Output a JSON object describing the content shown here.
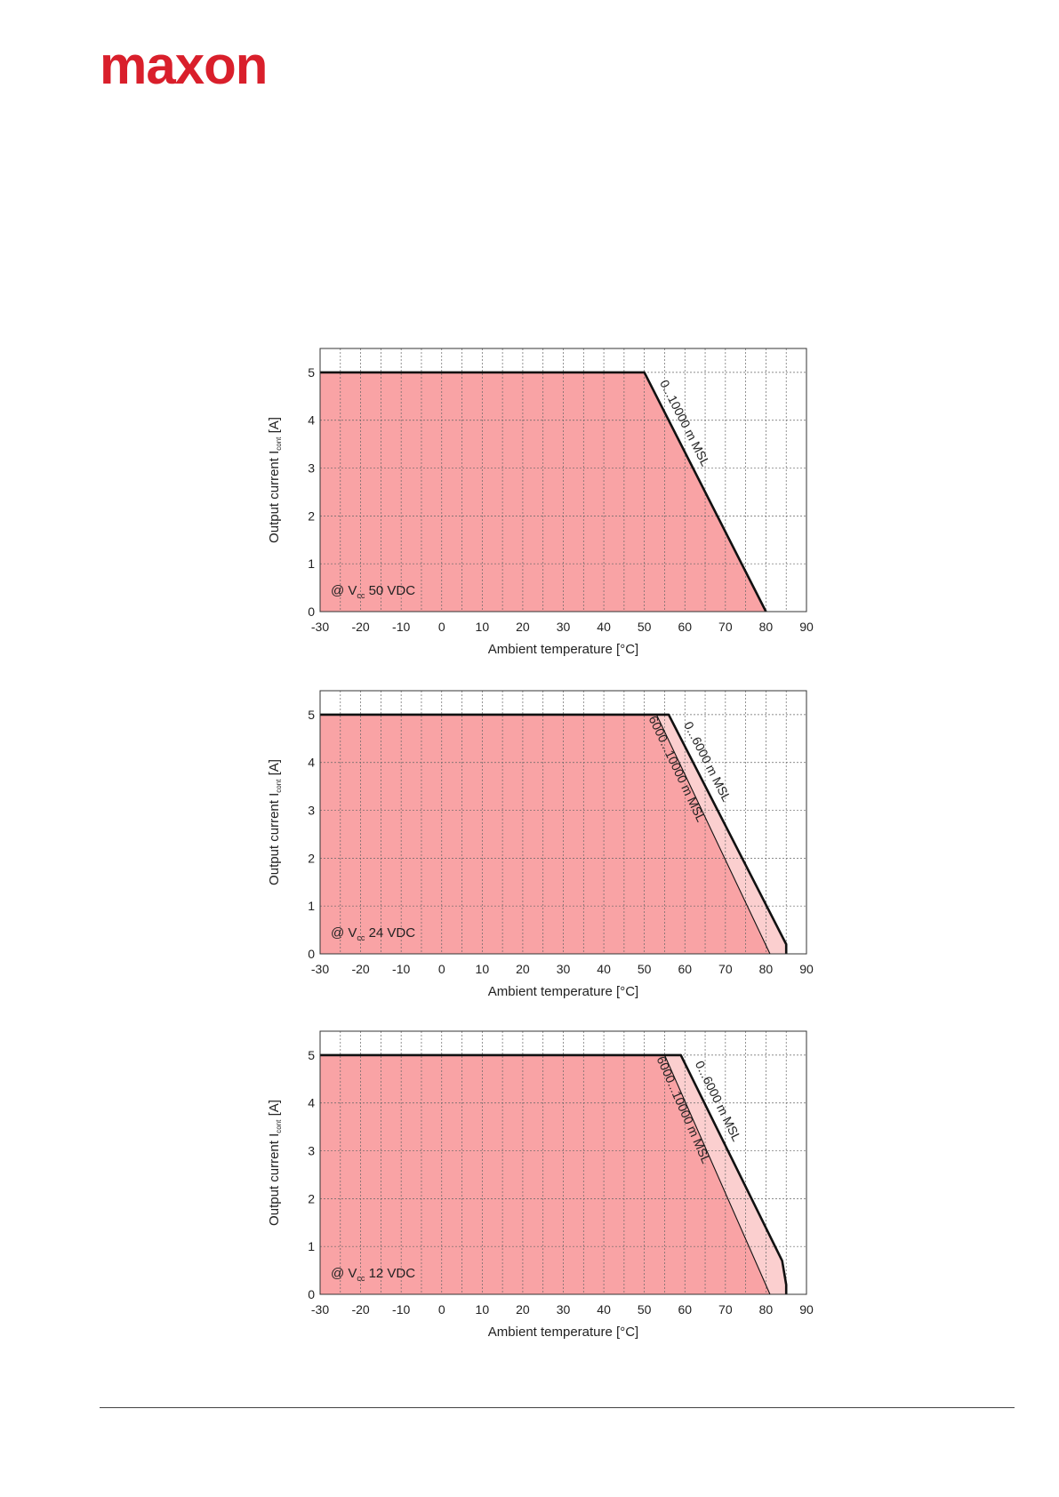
{
  "logo": {
    "text": "maxon",
    "color": "#d91f2b"
  },
  "colors": {
    "fill_main": "#f9a3a5",
    "fill_alt": "#fbcfcf",
    "line": "#111111",
    "grid": "#666666"
  },
  "chart_data": [
    {
      "type": "area",
      "xlabel": "Ambient temperature [°C]",
      "ylabel": "Output current I",
      "ylabel_sub": "cont",
      "ylabel_unit": " [A]",
      "xlim": [
        -30,
        90
      ],
      "ylim": [
        0,
        5.5
      ],
      "xticks": [
        -30,
        -20,
        -10,
        0,
        10,
        20,
        30,
        40,
        50,
        60,
        70,
        80,
        90
      ],
      "yticks": [
        0,
        1,
        2,
        3,
        4,
        5
      ],
      "grid": true,
      "annotation": {
        "prefix": "@ V",
        "sub": "cc",
        "text": " 50 VDC"
      },
      "series": [
        {
          "name": "0...10000 m MSL",
          "x": [
            -30,
            50,
            80
          ],
          "y": [
            5,
            5,
            0
          ]
        }
      ]
    },
    {
      "type": "area",
      "xlabel": "Ambient temperature [°C]",
      "ylabel": "Output current I",
      "ylabel_sub": "cont",
      "ylabel_unit": " [A]",
      "xlim": [
        -30,
        90
      ],
      "ylim": [
        0,
        5.5
      ],
      "xticks": [
        -30,
        -20,
        -10,
        0,
        10,
        20,
        30,
        40,
        50,
        60,
        70,
        80,
        90
      ],
      "yticks": [
        0,
        1,
        2,
        3,
        4,
        5
      ],
      "grid": true,
      "annotation": {
        "prefix": "@ V",
        "sub": "cc",
        "text": " 24 VDC"
      },
      "series": [
        {
          "name": "0...6000 m MSL",
          "x": [
            -30,
            56,
            85,
            85
          ],
          "y": [
            5,
            5,
            0.2,
            0
          ]
        },
        {
          "name": "6000...10000 m MSL",
          "x": [
            -30,
            53,
            81
          ],
          "y": [
            5,
            5,
            0
          ]
        }
      ]
    },
    {
      "type": "area",
      "xlabel": "Ambient temperature [°C]",
      "ylabel": "Output current I",
      "ylabel_sub": "cont",
      "ylabel_unit": " [A]",
      "xlim": [
        -30,
        90
      ],
      "ylim": [
        0,
        5.5
      ],
      "xticks": [
        -30,
        -20,
        -10,
        0,
        10,
        20,
        30,
        40,
        50,
        60,
        70,
        80,
        90
      ],
      "yticks": [
        0,
        1,
        2,
        3,
        4,
        5
      ],
      "grid": true,
      "annotation": {
        "prefix": "@ V",
        "sub": "cc",
        "text": " 12 VDC"
      },
      "series": [
        {
          "name": "0...6000 m MSL",
          "x": [
            -30,
            59,
            84,
            85,
            85
          ],
          "y": [
            5,
            5,
            0.7,
            0.2,
            0
          ]
        },
        {
          "name": "6000...10000 m MSL",
          "x": [
            -30,
            55,
            81
          ],
          "y": [
            5,
            5,
            0
          ]
        }
      ]
    }
  ]
}
